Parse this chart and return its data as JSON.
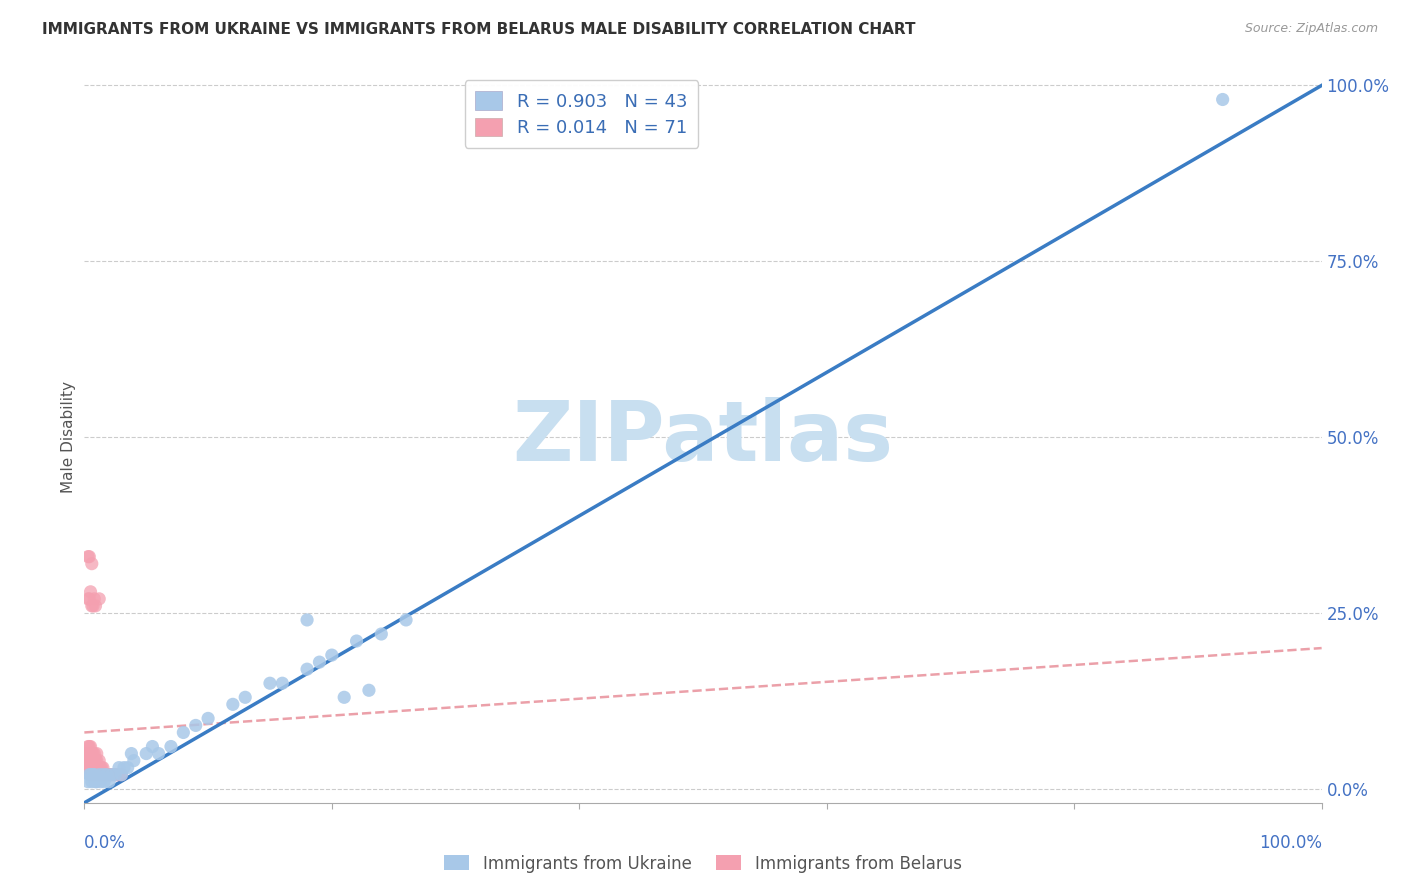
{
  "title": "IMMIGRANTS FROM UKRAINE VS IMMIGRANTS FROM BELARUS MALE DISABILITY CORRELATION CHART",
  "source": "Source: ZipAtlas.com",
  "ylabel": "Male Disability",
  "ukraine_R": 0.903,
  "ukraine_N": 43,
  "belarus_R": 0.014,
  "belarus_N": 71,
  "ukraine_scatter_color": "#a8c8e8",
  "ukraine_line_color": "#3a7cc4",
  "belarus_scatter_color": "#f4a0b0",
  "belarus_line_color": "#e8909a",
  "legend_ukraine_fill": "#a8c8e8",
  "legend_belarus_fill": "#f4a0b0",
  "legend_text_color": "#3a6db5",
  "watermark": "ZIPatlas",
  "watermark_color": "#c8dff0",
  "ytick_color": "#4472c4",
  "xlim": [
    0.0,
    1.0
  ],
  "ylim": [
    0.0,
    1.0
  ],
  "ukraine_line_x0": 0.0,
  "ukraine_line_y0": -0.02,
  "ukraine_line_x1": 1.0,
  "ukraine_line_y1": 1.0,
  "belarus_line_x0": 0.0,
  "belarus_line_y0": 0.08,
  "belarus_line_x1": 1.0,
  "belarus_line_y1": 0.2,
  "ukraine_x": [
    0.003,
    0.004,
    0.005,
    0.006,
    0.007,
    0.008,
    0.009,
    0.01,
    0.012,
    0.013,
    0.015,
    0.016,
    0.018,
    0.02,
    0.022,
    0.025,
    0.028,
    0.03,
    0.032,
    0.035,
    0.038,
    0.04,
    0.05,
    0.055,
    0.06,
    0.07,
    0.08,
    0.09,
    0.1,
    0.12,
    0.13,
    0.15,
    0.16,
    0.18,
    0.19,
    0.2,
    0.22,
    0.24,
    0.26,
    0.18,
    0.21,
    0.23,
    0.92
  ],
  "ukraine_y": [
    0.01,
    0.02,
    0.02,
    0.01,
    0.02,
    0.02,
    0.01,
    0.01,
    0.02,
    0.01,
    0.02,
    0.01,
    0.02,
    0.01,
    0.02,
    0.02,
    0.03,
    0.02,
    0.03,
    0.03,
    0.05,
    0.04,
    0.05,
    0.06,
    0.05,
    0.06,
    0.08,
    0.09,
    0.1,
    0.12,
    0.13,
    0.15,
    0.15,
    0.17,
    0.18,
    0.19,
    0.21,
    0.22,
    0.24,
    0.24,
    0.13,
    0.14,
    0.98
  ],
  "belarus_x": [
    0.001,
    0.001,
    0.002,
    0.002,
    0.002,
    0.003,
    0.003,
    0.003,
    0.003,
    0.004,
    0.004,
    0.004,
    0.004,
    0.005,
    0.005,
    0.005,
    0.005,
    0.005,
    0.006,
    0.006,
    0.006,
    0.006,
    0.007,
    0.007,
    0.007,
    0.007,
    0.008,
    0.008,
    0.008,
    0.008,
    0.009,
    0.009,
    0.009,
    0.01,
    0.01,
    0.01,
    0.01,
    0.011,
    0.011,
    0.012,
    0.012,
    0.012,
    0.013,
    0.013,
    0.014,
    0.014,
    0.015,
    0.015,
    0.016,
    0.017,
    0.018,
    0.019,
    0.02,
    0.021,
    0.022,
    0.024,
    0.025,
    0.026,
    0.028,
    0.03,
    0.004,
    0.006,
    0.008,
    0.005,
    0.007,
    0.003,
    0.009,
    0.012,
    0.004,
    0.006,
    0.003
  ],
  "belarus_y": [
    0.03,
    0.04,
    0.03,
    0.04,
    0.05,
    0.03,
    0.04,
    0.05,
    0.06,
    0.03,
    0.04,
    0.05,
    0.06,
    0.02,
    0.03,
    0.04,
    0.05,
    0.06,
    0.02,
    0.03,
    0.04,
    0.05,
    0.02,
    0.03,
    0.04,
    0.05,
    0.02,
    0.03,
    0.04,
    0.05,
    0.02,
    0.03,
    0.04,
    0.02,
    0.03,
    0.04,
    0.05,
    0.02,
    0.03,
    0.02,
    0.03,
    0.04,
    0.02,
    0.03,
    0.02,
    0.03,
    0.02,
    0.03,
    0.02,
    0.02,
    0.02,
    0.02,
    0.02,
    0.02,
    0.02,
    0.02,
    0.02,
    0.02,
    0.02,
    0.02,
    0.27,
    0.26,
    0.27,
    0.28,
    0.26,
    0.27,
    0.26,
    0.27,
    0.33,
    0.32,
    0.33
  ]
}
